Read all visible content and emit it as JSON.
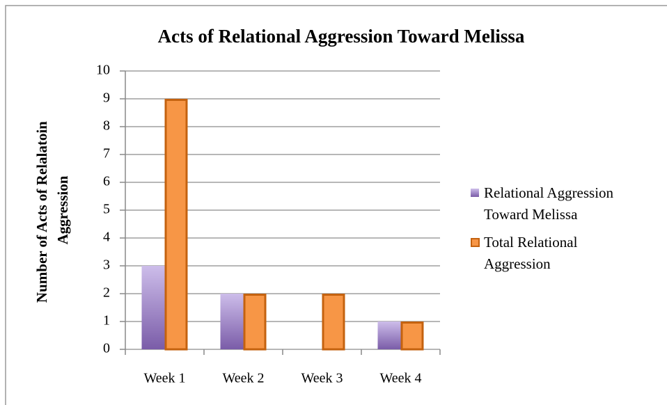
{
  "chart_data": {
    "type": "bar",
    "title": "Acts of Relational Aggression Toward Melissa",
    "y_label": "Number of Acts of Relalatoin Aggression",
    "categories": [
      "Week 1",
      "Week 2",
      "Week 3",
      "Week 4"
    ],
    "series": [
      {
        "name": "Relational Aggression Toward Melissa",
        "color": "#8064a2",
        "values": [
          3,
          2,
          0,
          1
        ]
      },
      {
        "name": "Total Relational Aggression",
        "color": "#f79646",
        "values": [
          9,
          2,
          2,
          1
        ]
      }
    ],
    "ylim": [
      0,
      10
    ],
    "yticks": [
      0,
      1,
      2,
      3,
      4,
      5,
      6,
      7,
      8,
      9,
      10
    ],
    "grid": true,
    "legend": "right"
  }
}
